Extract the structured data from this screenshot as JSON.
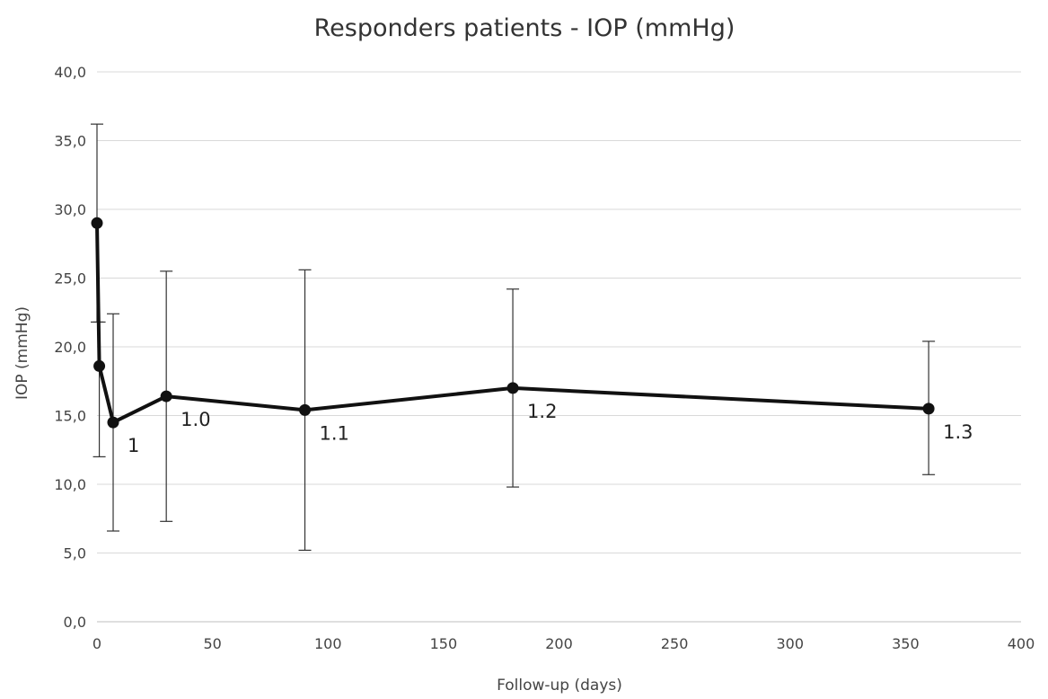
{
  "chart_data": {
    "type": "line",
    "title": "Responders patients - IOP (mmHg)",
    "xlabel": "Follow-up (days)",
    "ylabel": "IOP (mmHg)",
    "xlim": [
      0,
      400
    ],
    "ylim": [
      0,
      40
    ],
    "x_ticks": [
      0,
      50,
      100,
      150,
      200,
      250,
      300,
      350,
      400
    ],
    "y_ticks": [
      0,
      5,
      10,
      15,
      20,
      25,
      30,
      35,
      40
    ],
    "y_tick_labels": [
      "0,0",
      "5,0",
      "10,0",
      "15,0",
      "20,0",
      "25,0",
      "30,0",
      "35,0",
      "40,0"
    ],
    "grid": true,
    "series": [
      {
        "points": [
          {
            "x": 0,
            "y": 29.0,
            "err_low": 21.8,
            "err_high": 36.2,
            "label": ""
          },
          {
            "x": 1,
            "y": 18.6,
            "err_low": 12.0,
            "err_high": 21.8,
            "label": ""
          },
          {
            "x": 7,
            "y": 14.5,
            "err_low": 6.6,
            "err_high": 22.4,
            "label": "1"
          },
          {
            "x": 30,
            "y": 16.4,
            "err_low": 7.3,
            "err_high": 25.5,
            "label": "1.0"
          },
          {
            "x": 90,
            "y": 15.4,
            "err_low": 5.2,
            "err_high": 25.6,
            "label": "1.1"
          },
          {
            "x": 180,
            "y": 17.0,
            "err_low": 9.8,
            "err_high": 24.2,
            "label": "1.2"
          },
          {
            "x": 360,
            "y": 15.5,
            "err_low": 10.7,
            "err_high": 20.4,
            "label": "1.3"
          }
        ]
      }
    ]
  }
}
